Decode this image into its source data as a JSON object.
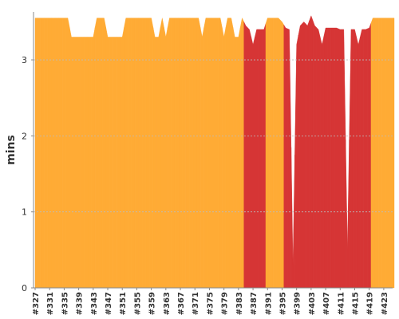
{
  "chart_data": {
    "type": "area",
    "y_label": "mins",
    "categories": [
      "#327",
      null,
      null,
      null,
      "#331",
      null,
      null,
      null,
      "#335",
      null,
      null,
      null,
      "#339",
      null,
      null,
      null,
      "#343",
      null,
      null,
      null,
      "#347",
      null,
      null,
      null,
      "#351",
      null,
      null,
      null,
      "#355",
      null,
      null,
      null,
      "#359",
      null,
      null,
      null,
      "#363",
      null,
      null,
      null,
      "#367",
      null,
      null,
      null,
      "#371",
      null,
      null,
      null,
      "#375",
      null,
      null,
      null,
      "#379",
      null,
      null,
      null,
      "#383",
      null,
      null,
      null,
      "#387",
      null,
      null,
      null,
      "#391",
      null,
      null,
      null,
      "#395",
      null,
      null,
      null,
      "#399",
      null,
      null,
      null,
      "#403",
      null,
      null,
      null,
      "#407",
      null,
      null,
      null,
      "#411",
      null,
      null,
      null,
      "#415",
      null,
      null,
      null,
      "#419",
      null,
      null,
      null,
      "#423",
      null,
      null
    ],
    "values": [
      3.55,
      3.55,
      3.55,
      3.55,
      3.55,
      3.55,
      3.55,
      3.55,
      3.55,
      3.55,
      3.3,
      3.3,
      3.3,
      3.3,
      3.3,
      3.3,
      3.3,
      3.55,
      3.55,
      3.55,
      3.3,
      3.3,
      3.3,
      3.3,
      3.3,
      3.55,
      3.55,
      3.55,
      3.55,
      3.55,
      3.55,
      3.55,
      3.55,
      3.3,
      3.3,
      3.55,
      3.3,
      3.55,
      3.55,
      3.55,
      3.55,
      3.55,
      3.55,
      3.55,
      3.55,
      3.55,
      3.3,
      3.55,
      3.55,
      3.55,
      3.55,
      3.55,
      3.3,
      3.55,
      3.55,
      3.3,
      3.3,
      3.55,
      3.45,
      3.4,
      3.2,
      3.4,
      3.4,
      3.4,
      3.55,
      3.55,
      3.55,
      3.55,
      3.5,
      3.42,
      3.4,
      0.3,
      3.2,
      3.45,
      3.5,
      3.45,
      3.58,
      3.45,
      3.4,
      3.2,
      3.42,
      3.42,
      3.42,
      3.42,
      3.4,
      3.4,
      0.5,
      3.4,
      3.4,
      3.2,
      3.4,
      3.4,
      3.42,
      3.55,
      3.55,
      3.55,
      3.55,
      3.55,
      3.55
    ],
    "colors": [
      "#ffab35",
      "#ffab35",
      "#ffab35",
      "#ffab35",
      "#ffab35",
      "#ffab35",
      "#ffab35",
      "#ffab35",
      "#ffab35",
      "#ffab35",
      "#ffab35",
      "#ffab35",
      "#ffab35",
      "#ffab35",
      "#ffab35",
      "#ffab35",
      "#ffab35",
      "#ffab35",
      "#ffab35",
      "#ffab35",
      "#ffab35",
      "#ffab35",
      "#ffab35",
      "#ffab35",
      "#ffab35",
      "#ffab35",
      "#ffab35",
      "#ffab35",
      "#ffab35",
      "#ffab35",
      "#ffab35",
      "#ffab35",
      "#ffab35",
      "#ffab35",
      "#ffab35",
      "#ffab35",
      "#ffab35",
      "#ffab35",
      "#ffab35",
      "#ffab35",
      "#ffab35",
      "#ffab35",
      "#ffab35",
      "#ffab35",
      "#ffab35",
      "#ffab35",
      "#ffab35",
      "#ffab35",
      "#ffab35",
      "#ffab35",
      "#ffab35",
      "#ffab35",
      "#ffab35",
      "#ffab35",
      "#ffab35",
      "#ffab35",
      "#ffab35",
      "#ffab35",
      "#d63535",
      "#d63535",
      "#d63535",
      "#d63535",
      "#d63535",
      "#d63535",
      "#ffab35",
      "#ffab35",
      "#ffab35",
      "#ffab35",
      "#ffab35",
      "#d63535",
      "#d63535",
      "#d63535",
      "#d63535",
      "#d63535",
      "#d63535",
      "#d63535",
      "#d63535",
      "#d63535",
      "#d63535",
      "#d63535",
      "#d63535",
      "#d63535",
      "#d63535",
      "#d63535",
      "#d63535",
      "#d63535",
      "#d63535",
      "#d63535",
      "#d63535",
      "#d63535",
      "#d63535",
      "#d63535",
      "#d63535",
      "#ffab35",
      "#ffab35",
      "#ffab35",
      "#ffab35",
      "#ffab35",
      "#ffab35"
    ],
    "ylim": [
      0,
      3.63
    ],
    "yticks": [
      0,
      1,
      2,
      3
    ],
    "grid": true
  }
}
